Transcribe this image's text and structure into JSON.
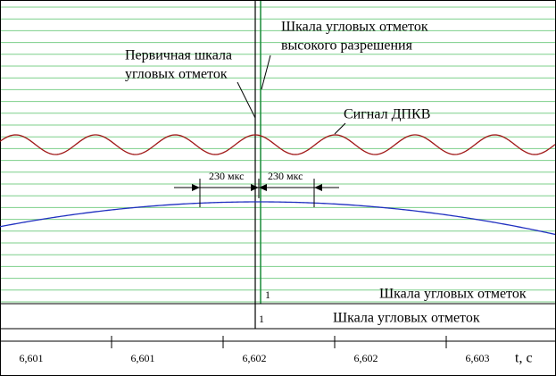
{
  "annotations": {
    "high_res_scale": [
      "Шкала угловых отметок",
      "высокого разрешения"
    ],
    "primary_scale": [
      "Первичная шкала",
      "угловых отметок"
    ],
    "signal": "Сигнал ДПКВ",
    "interval_left": "230 мкс",
    "interval_right": "230 мкс"
  },
  "scales": [
    {
      "mark": "1",
      "label": "Шкала угловых отметок"
    },
    {
      "mark": "1",
      "label": "Шкала угловых отметок"
    }
  ],
  "time_axis": {
    "labels": [
      "6,601",
      "6,601",
      "6,602",
      "6,602",
      "6,603"
    ],
    "unit": "t, с"
  }
}
